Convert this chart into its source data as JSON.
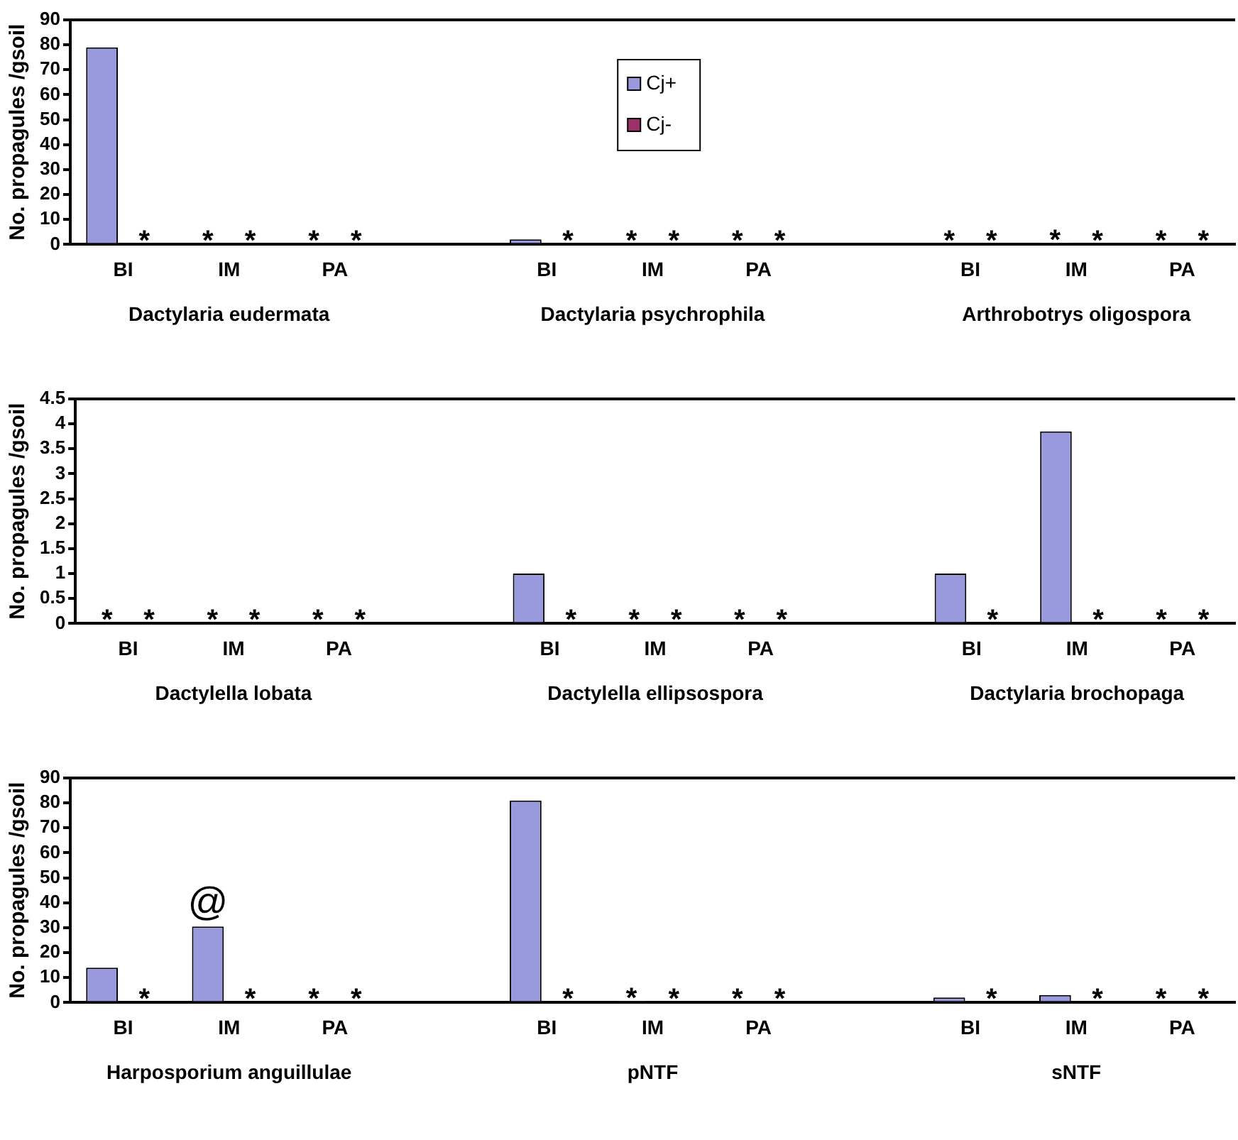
{
  "chart_data": [
    {
      "type": "bar",
      "ylabel": "No. propagules /gsoil",
      "categories": [
        "BI",
        "IM",
        "PA",
        null,
        "BI",
        "IM",
        "PA",
        null,
        "BI",
        "IM",
        "PA"
      ],
      "ylim": [
        0,
        90
      ],
      "yticks": [
        0,
        10,
        20,
        30,
        40,
        50,
        60,
        70,
        80,
        90
      ],
      "grid": false,
      "legend": "top",
      "annotations": [
        "Dactylaria eudermata",
        "Dactylaria psychrophila",
        "Arthrobotrys oligospora"
      ],
      "series": [
        {
          "name": "Cj+",
          "color": "#9999dd",
          "values": [
            79,
            0,
            0,
            null,
            2,
            0,
            0,
            null,
            0,
            0.3,
            0
          ],
          "value_labels": [
            null,
            "*",
            "*",
            null,
            null,
            "*",
            "*",
            null,
            "*",
            "*",
            "*"
          ]
        },
        {
          "name": "Cj-",
          "color": "#993366",
          "values": [
            0,
            0,
            0,
            null,
            0,
            0,
            0,
            null,
            0,
            0,
            0
          ],
          "value_labels": [
            "*",
            "*",
            "*",
            null,
            "*",
            "*",
            "*",
            null,
            "*",
            "*",
            "*"
          ]
        }
      ]
    },
    {
      "type": "bar",
      "ylabel": "No. propagules /gsoil",
      "categories": [
        "BI",
        "IM",
        "PA",
        null,
        "BI",
        "IM",
        "PA",
        null,
        "BI",
        "IM",
        "PA"
      ],
      "ylim": [
        0,
        4.5
      ],
      "yticks": [
        0,
        0.5,
        1,
        1.5,
        2,
        2.5,
        3,
        3.5,
        4,
        4.5
      ],
      "grid": false,
      "annotations": [
        "Dactylella lobata",
        "Dactylella ellipsospora",
        "Dactylaria brochopaga"
      ],
      "series": [
        {
          "color": "#9999dd",
          "values": [
            0,
            0,
            0,
            null,
            1,
            0,
            0,
            null,
            1,
            3.85,
            0
          ],
          "value_labels": [
            "*",
            "*",
            "*",
            null,
            null,
            "*",
            "*",
            null,
            null,
            null,
            "*"
          ]
        },
        {
          "color": "#993366",
          "values": [
            0,
            0,
            0,
            null,
            0,
            0,
            0,
            null,
            0,
            0,
            0
          ],
          "value_labels": [
            "*",
            "*",
            "*",
            null,
            "*",
            "*",
            "*",
            null,
            "*",
            "*",
            "*"
          ]
        }
      ]
    },
    {
      "type": "bar",
      "ylabel": "No. propagules /gsoil",
      "categories": [
        "BI",
        "IM",
        "PA",
        null,
        "BI",
        "IM",
        "PA",
        null,
        "BI",
        "IM",
        "PA"
      ],
      "ylim": [
        0,
        90
      ],
      "yticks": [
        0,
        10,
        20,
        30,
        40,
        50,
        60,
        70,
        80,
        90
      ],
      "grid": false,
      "annotations": [
        "Harposporium anguillulae",
        "pNTF",
        "sNTF"
      ],
      "series": [
        {
          "color": "#9999dd",
          "values": [
            14,
            30.5,
            0,
            null,
            81,
            0.3,
            0,
            null,
            2,
            3,
            0
          ],
          "value_labels": [
            null,
            "@",
            "*",
            null,
            null,
            "*",
            "*",
            null,
            null,
            null,
            "*"
          ]
        },
        {
          "color": "#993366",
          "values": [
            0,
            0,
            0,
            null,
            0,
            0,
            0,
            null,
            0,
            0,
            0
          ],
          "value_labels": [
            "*",
            "*",
            "*",
            null,
            "*",
            "*",
            "*",
            null,
            "*",
            "*",
            "*"
          ]
        }
      ]
    }
  ]
}
